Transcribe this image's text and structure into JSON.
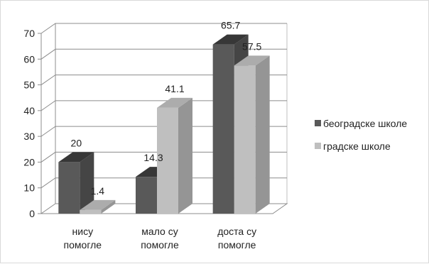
{
  "chart_data": {
    "type": "bar",
    "style": "3d-clustered-column",
    "categories": [
      [
        "нису",
        "помогле"
      ],
      [
        "мало су",
        "помогле"
      ],
      [
        "доста су",
        "помогле"
      ]
    ],
    "series": [
      {
        "name": "београдске школе",
        "values": [
          20,
          14.3,
          65.7
        ],
        "value_labels": [
          "20",
          "14.3",
          "65.7"
        ],
        "color": "#595959"
      },
      {
        "name": "градске школе",
        "values": [
          1.4,
          41.1,
          57.5
        ],
        "value_labels": [
          "1.4",
          "41.1",
          "57.5"
        ],
        "color": "#bfbfbf"
      }
    ],
    "ylim": [
      0,
      70
    ],
    "yticks": [
      0,
      10,
      20,
      30,
      40,
      50,
      60,
      70
    ],
    "grid": true,
    "legend_position": "right"
  }
}
